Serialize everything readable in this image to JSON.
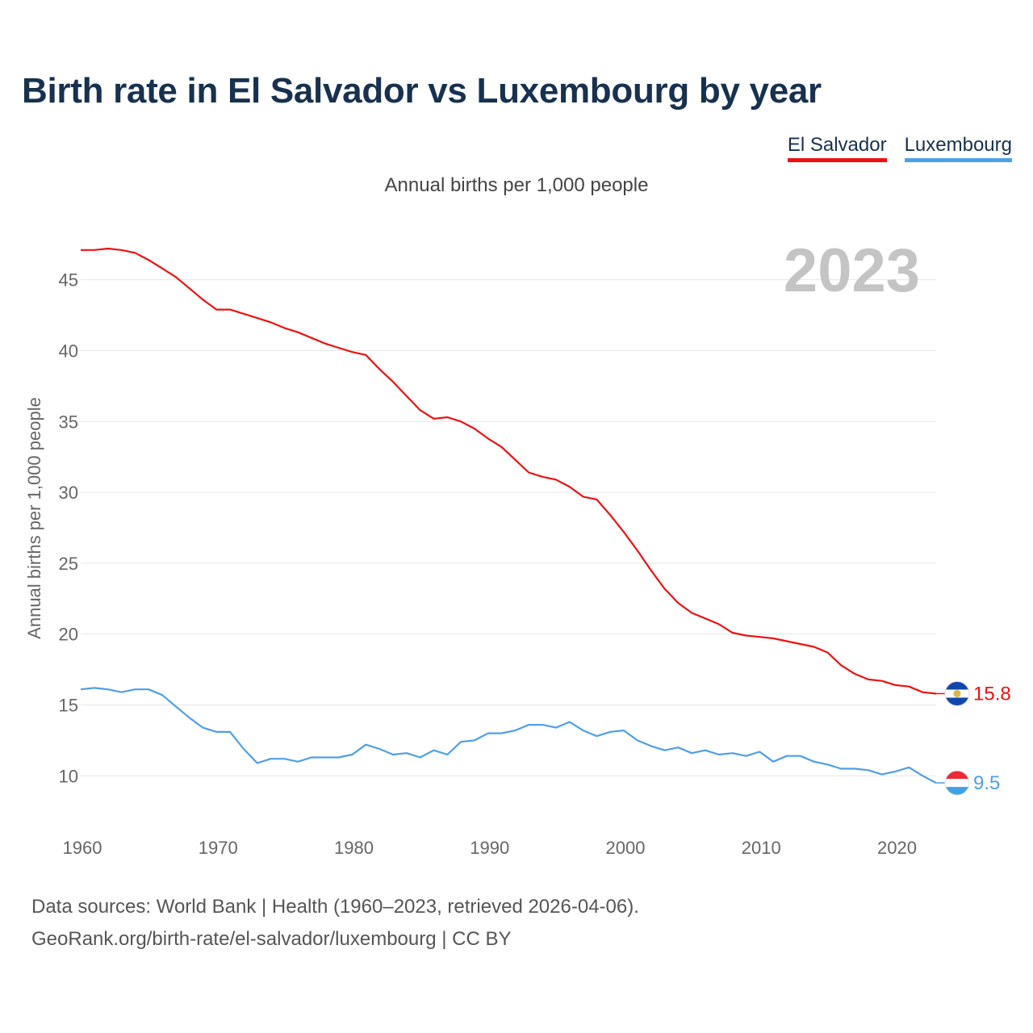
{
  "header": {
    "title": "Birth rate in El Salvador vs Luxembourg by year",
    "subtitle": "Annual births per 1,000 people"
  },
  "legend": {
    "items": [
      {
        "label": "El Salvador",
        "color": "#ee1111"
      },
      {
        "label": "Luxembourg",
        "color": "#4f9fe8"
      }
    ]
  },
  "footer": {
    "line1": "Data sources: World Bank | Health (1960–2023, retrieved 2026-04-06).",
    "line2": "GeoRank.org/birth-rate/el-salvador/luxembourg | CC BY"
  },
  "chart_data": {
    "type": "line",
    "title": "Birth rate in El Salvador vs Luxembourg by year",
    "ylabel": "Annual births per 1,000 people",
    "xlabel": "",
    "year_label": "2023",
    "xlim": [
      1960,
      2023
    ],
    "ylim": [
      7,
      48
    ],
    "x_ticks": [
      1960,
      1970,
      1980,
      1990,
      2000,
      2010,
      2020
    ],
    "y_ticks": [
      10,
      15,
      20,
      25,
      30,
      35,
      40,
      45
    ],
    "grid": true,
    "x": [
      1960,
      1961,
      1962,
      1963,
      1964,
      1965,
      1966,
      1967,
      1968,
      1969,
      1970,
      1971,
      1972,
      1973,
      1974,
      1975,
      1976,
      1977,
      1978,
      1979,
      1980,
      1981,
      1982,
      1983,
      1984,
      1985,
      1986,
      1987,
      1988,
      1989,
      1990,
      1991,
      1992,
      1993,
      1994,
      1995,
      1996,
      1997,
      1998,
      1999,
      2000,
      2001,
      2002,
      2003,
      2004,
      2005,
      2006,
      2007,
      2008,
      2009,
      2010,
      2011,
      2012,
      2013,
      2014,
      2015,
      2016,
      2017,
      2018,
      2019,
      2020,
      2021,
      2022,
      2023
    ],
    "series": [
      {
        "name": "El Salvador",
        "color": "#ee1111",
        "end_label": "15.8",
        "values": [
          47.1,
          47.1,
          47.2,
          47.1,
          46.9,
          46.4,
          45.8,
          45.2,
          44.4,
          43.6,
          42.9,
          42.9,
          42.6,
          42.3,
          42.0,
          41.6,
          41.3,
          40.9,
          40.5,
          40.2,
          39.9,
          39.7,
          38.7,
          37.8,
          36.8,
          35.8,
          35.2,
          35.3,
          35.0,
          34.5,
          33.8,
          33.2,
          32.3,
          31.4,
          31.1,
          30.9,
          30.4,
          29.7,
          29.5,
          28.4,
          27.2,
          25.9,
          24.5,
          23.2,
          22.2,
          21.5,
          21.1,
          20.7,
          20.1,
          19.9,
          19.8,
          19.7,
          19.5,
          19.3,
          19.1,
          18.7,
          17.8,
          17.2,
          16.8,
          16.7,
          16.4,
          16.3,
          15.9,
          15.8
        ]
      },
      {
        "name": "Luxembourg",
        "color": "#4f9fe8",
        "end_label": "9.5",
        "values": [
          16.1,
          16.2,
          16.1,
          15.9,
          16.1,
          16.1,
          15.7,
          14.9,
          14.1,
          13.4,
          13.1,
          13.1,
          11.9,
          10.9,
          11.2,
          11.2,
          11.0,
          11.3,
          11.3,
          11.3,
          11.5,
          12.2,
          11.9,
          11.5,
          11.6,
          11.3,
          11.8,
          11.5,
          12.4,
          12.5,
          13.0,
          13.0,
          13.2,
          13.6,
          13.6,
          13.4,
          13.8,
          13.2,
          12.8,
          13.1,
          13.2,
          12.5,
          12.1,
          11.8,
          12.0,
          11.6,
          11.8,
          11.5,
          11.6,
          11.4,
          11.7,
          11.0,
          11.4,
          11.4,
          11.0,
          10.8,
          10.5,
          10.5,
          10.4,
          10.1,
          10.3,
          10.6,
          10.0,
          9.5
        ]
      }
    ]
  }
}
